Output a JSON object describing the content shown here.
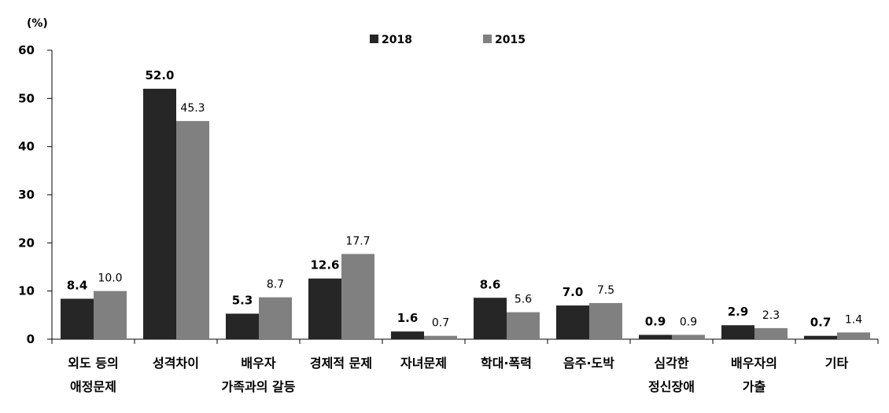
{
  "chart_data": {
    "type": "bar",
    "title": "",
    "xlabel": "",
    "ylabel": "(%)",
    "ylim": [
      0,
      60
    ],
    "yticks": [
      0,
      10,
      20,
      30,
      40,
      50,
      60
    ],
    "legend_position": "top-center",
    "categories": [
      [
        "외도 등의",
        "애정문제"
      ],
      [
        "성격차이"
      ],
      [
        "배우자",
        "가족과의 갈등"
      ],
      [
        "경제적 문제"
      ],
      [
        "자녀문제"
      ],
      [
        "학대·폭력"
      ],
      [
        "음주·도박"
      ],
      [
        "심각한",
        "정신장애"
      ],
      [
        "배우자의",
        "가출"
      ],
      [
        "기타"
      ]
    ],
    "series": [
      {
        "name": "2018",
        "color": "#262626",
        "values": [
          8.4,
          52.0,
          5.3,
          12.6,
          1.6,
          8.6,
          7.0,
          0.9,
          2.9,
          0.7
        ],
        "labels": [
          "8.4",
          "52.0",
          "5.3",
          "12.6",
          "1.6",
          "8.6",
          "7.0",
          "0.9",
          "2.9",
          "0.7"
        ]
      },
      {
        "name": "2015",
        "color": "#808080",
        "values": [
          10.0,
          45.3,
          8.7,
          17.7,
          0.7,
          5.6,
          7.5,
          0.9,
          2.3,
          1.4
        ],
        "labels": [
          "10.0",
          "45.3",
          "8.7",
          "17.7",
          "0.7",
          "5.6",
          "7.5",
          "0.9",
          "2.3",
          "1.4"
        ]
      }
    ]
  }
}
